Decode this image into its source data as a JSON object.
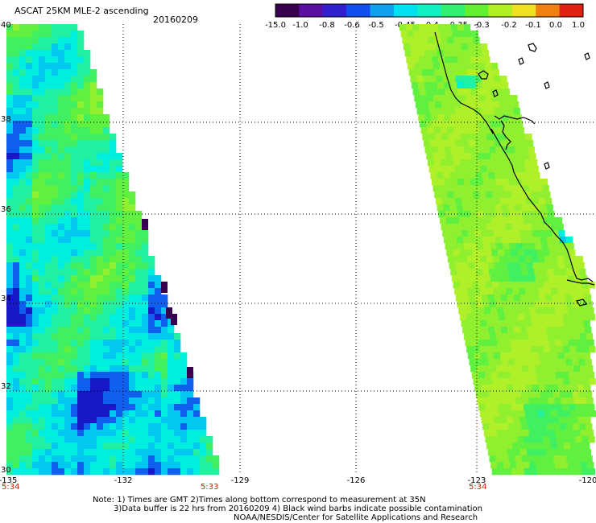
{
  "header": {
    "title": "ASCAT 25KM MLE-2 ascending",
    "date": "20160209"
  },
  "colorbar": {
    "tick_labels": [
      "-15.0",
      "-1.0",
      "-0.8",
      "-0.6",
      "-0.5",
      "-0.45",
      "-0.4",
      "-0.35",
      "-0.3",
      "-0.2",
      "-0.1",
      "0.0",
      "1.0"
    ],
    "colors": [
      "#3a0050",
      "#5a10a0",
      "#3020d0",
      "#1050f0",
      "#10a0f0",
      "#00e0f0",
      "#10f0c0",
      "#30f070",
      "#60f030",
      "#b0f020",
      "#f0e020",
      "#f08010",
      "#e02010"
    ]
  },
  "map": {
    "x_ticks": [
      "-135",
      "-132",
      "-129",
      "-126",
      "-123",
      "-120"
    ],
    "y_ticks": [
      "40",
      "38",
      "36",
      "34",
      "32",
      "30"
    ],
    "lon_range": [
      -135,
      -120
    ],
    "lat_range": [
      30,
      40
    ],
    "time_labels": [
      "5:34",
      "5:33",
      "5:34"
    ]
  },
  "notes": {
    "line1": "Note: 1) Times are GMT 2)Times along bottom correspond to measurement at 35N",
    "line2": "3)Data buffer is 22 hrs from 20160209 4) Black wind barbs indicate possible contamination",
    "line3": "NOAA/NESDIS/Center for Satellite Applications and Research"
  }
}
